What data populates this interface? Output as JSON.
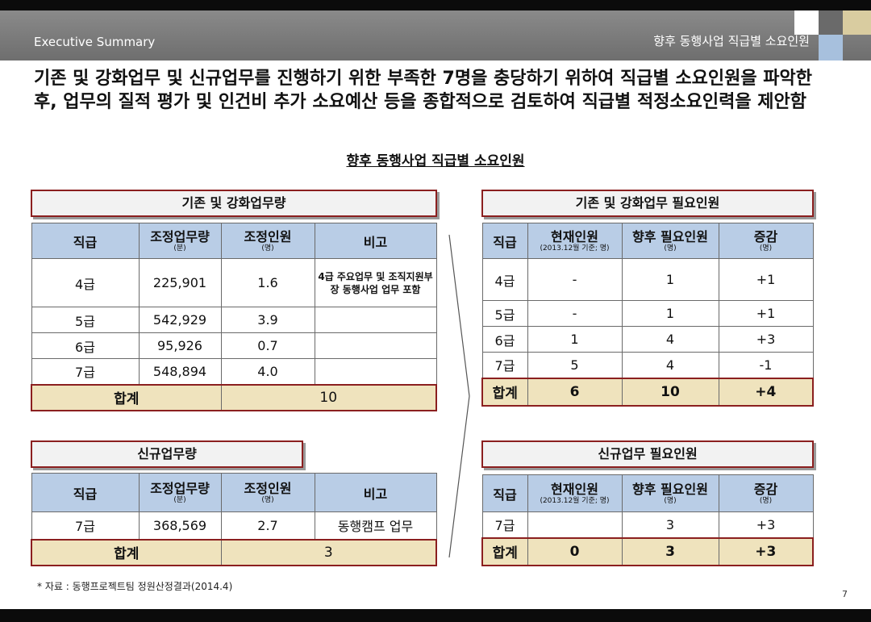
{
  "header": {
    "section_label": "Executive Summary",
    "page_title": "향후 동행사업 직급별 소요인원"
  },
  "headline": "기존 및 강화업무 및 신규업무를 진행하기 위한 부족한 7명을 충당하기 위하여 직급별 소요인원을 파악한 후, 업무의 질적 평가 및 인건비 추가 소요예산 등을 종합적으로 검토하여 직급별 적정소요인력을 제안함",
  "section_title": "향후 동행사업 직급별 소요인원",
  "existing_workload": {
    "title": "기존 및 강화업무량",
    "headers": {
      "grade": "직급",
      "adjusted_workload": "조정업무량",
      "adjusted_workload_unit": "(분)",
      "adjusted_staff": "조정인원",
      "adjusted_staff_unit": "(명)",
      "remarks": "비고"
    },
    "rows": [
      {
        "grade": "4급",
        "workload": "225,901",
        "staff": "1.6",
        "remarks": "4급 주요업무 및 조직지원부장 동행사업 업무 포함"
      },
      {
        "grade": "5급",
        "workload": "542,929",
        "staff": "3.9",
        "remarks": ""
      },
      {
        "grade": "6급",
        "workload": "95,926",
        "staff": "0.7",
        "remarks": ""
      },
      {
        "grade": "7급",
        "workload": "548,894",
        "staff": "4.0",
        "remarks": ""
      }
    ],
    "total": {
      "label": "합계",
      "value": "10"
    }
  },
  "existing_required": {
    "title": "기존 및 강화업무 필요인원",
    "headers": {
      "grade": "직급",
      "current": "현재인원",
      "current_unit": "(2013.12월 기준; 명)",
      "future": "향후 필요인원",
      "future_unit": "(명)",
      "change": "증감",
      "change_unit": "(명)"
    },
    "rows": [
      {
        "grade": "4급",
        "current": "-",
        "future": "1",
        "change": "+1"
      },
      {
        "grade": "5급",
        "current": "-",
        "future": "1",
        "change": "+1"
      },
      {
        "grade": "6급",
        "current": "1",
        "future": "4",
        "change": "+3"
      },
      {
        "grade": "7급",
        "current": "5",
        "future": "4",
        "change": "-1"
      }
    ],
    "total": {
      "label": "합계",
      "current": "6",
      "future": "10",
      "change": "+4"
    }
  },
  "new_workload": {
    "title": "신규업무량",
    "headers": {
      "grade": "직급",
      "adjusted_workload": "조정업무량",
      "adjusted_workload_unit": "(분)",
      "adjusted_staff": "조정인원",
      "adjusted_staff_unit": "(명)",
      "remarks": "비고"
    },
    "rows": [
      {
        "grade": "7급",
        "workload": "368,569",
        "staff": "2.7",
        "remarks": "동행캠프 업무"
      }
    ],
    "total": {
      "label": "합계",
      "value": "3"
    }
  },
  "new_required": {
    "title": "신규업무 필요인원",
    "headers": {
      "grade": "직급",
      "current": "현재인원",
      "current_unit": "(2013.12월 기준; 명)",
      "future": "향후 필요인원",
      "future_unit": "(명)",
      "change": "증감",
      "change_unit": "(명)"
    },
    "rows": [
      {
        "grade": "7급",
        "current": "",
        "future": "3",
        "change": "+3"
      }
    ],
    "total": {
      "label": "합계",
      "current": "0",
      "future": "3",
      "change": "+3"
    }
  },
  "source_note": "* 자료 : 동행프로젝트팀 정원산정결과(2014.4)",
  "page_number": "7"
}
